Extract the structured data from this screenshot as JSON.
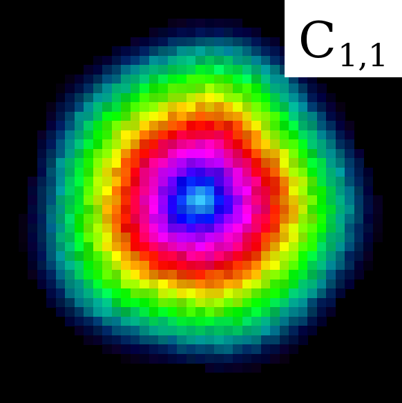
{
  "panel": {
    "label_main": "C",
    "label_sub": "1,1"
  },
  "colors": {
    "background": "#000000",
    "label_background": "#ffffff",
    "label_text": "#000000"
  },
  "image": {
    "description_kind": "pixelated circular hue-ring pattern",
    "ring_hue_sequence": [
      "cyan",
      "blue",
      "magenta",
      "red",
      "yellow",
      "green",
      "cyan",
      "blue"
    ]
  }
}
